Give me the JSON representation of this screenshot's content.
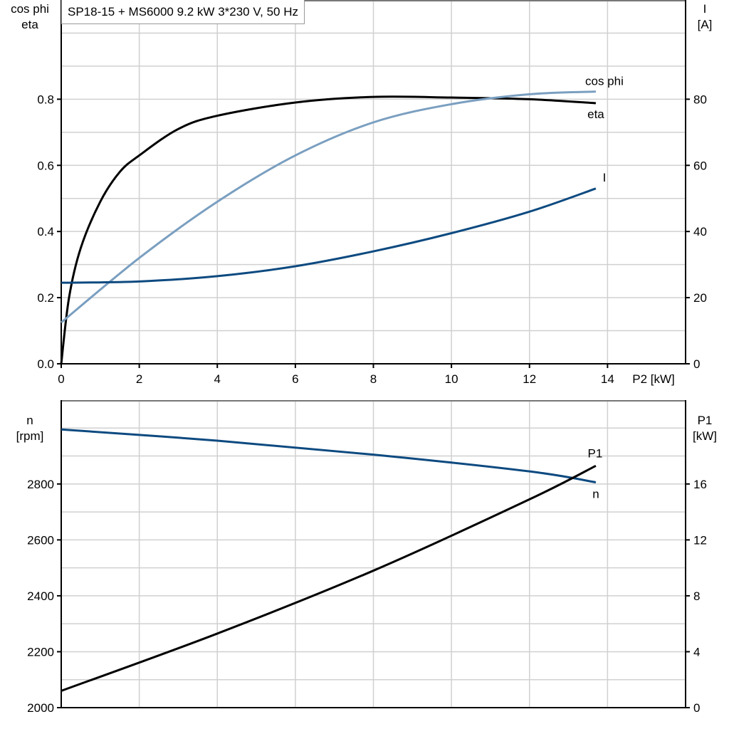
{
  "title": "SP18-15 + MS6000   9.2 kW   3*230 V, 50 Hz",
  "colors": {
    "eta": "#000000",
    "cos_phi": "#7a9fc0",
    "I": "#0d4a80",
    "n": "#0d4a80",
    "P1": "#000000",
    "grid": "#d0d0d0"
  },
  "chart_data": [
    {
      "type": "line",
      "xlabel": "P2 [kW]",
      "ylabel_left": [
        "cos phi",
        "eta"
      ],
      "ylabel_right": [
        "I",
        "[A]"
      ],
      "xlim": [
        0,
        16
      ],
      "ylim_left": [
        0,
        1.1
      ],
      "ylim_right": [
        0,
        110
      ],
      "x_ticks": [
        "0",
        "2",
        "4",
        "6",
        "8",
        "10",
        "12",
        "14"
      ],
      "y_left_ticks": [
        "0.0",
        "0.2",
        "0.4",
        "0.6",
        "0.8"
      ],
      "y_right_ticks": [
        "0",
        "20",
        "40",
        "60",
        "80"
      ],
      "grid": true,
      "series": [
        {
          "name": "eta",
          "axis": "left",
          "x": [
            0,
            0.2,
            0.5,
            1,
            1.5,
            2,
            3,
            4,
            6,
            8,
            10,
            12,
            13.7
          ],
          "y": [
            0,
            0.2,
            0.35,
            0.49,
            0.58,
            0.63,
            0.71,
            0.75,
            0.79,
            0.807,
            0.805,
            0.8,
            0.788
          ]
        },
        {
          "name": "cos phi",
          "axis": "left",
          "x": [
            0,
            2,
            4,
            6,
            8,
            10,
            12,
            13.7
          ],
          "y": [
            0.125,
            0.32,
            0.49,
            0.63,
            0.73,
            0.785,
            0.815,
            0.823
          ]
        },
        {
          "name": "I",
          "axis": "right",
          "x": [
            0,
            2,
            4,
            6,
            8,
            10,
            12,
            13.7
          ],
          "y": [
            24.5,
            24.9,
            26.5,
            29.5,
            34,
            39.5,
            46,
            53
          ]
        }
      ]
    },
    {
      "type": "line",
      "ylabel_left": [
        "n",
        "[rpm]"
      ],
      "ylabel_right": [
        "P1",
        "[kW]"
      ],
      "xlim": [
        0,
        16
      ],
      "ylim_left": [
        2000,
        3100
      ],
      "ylim_right": [
        0,
        22
      ],
      "y_left_ticks": [
        "2000",
        "2200",
        "2400",
        "2600",
        "2800"
      ],
      "y_right_ticks": [
        "0",
        "4",
        "8",
        "12",
        "16"
      ],
      "grid": true,
      "series": [
        {
          "name": "n",
          "axis": "left",
          "x": [
            0,
            4,
            8,
            12,
            13.7
          ],
          "y": [
            2995,
            2955,
            2905,
            2845,
            2806
          ]
        },
        {
          "name": "P1",
          "axis": "right",
          "x": [
            0,
            4,
            8,
            12,
            13.7
          ],
          "y": [
            1.2,
            5.3,
            9.8,
            14.9,
            17.3
          ]
        }
      ]
    }
  ]
}
